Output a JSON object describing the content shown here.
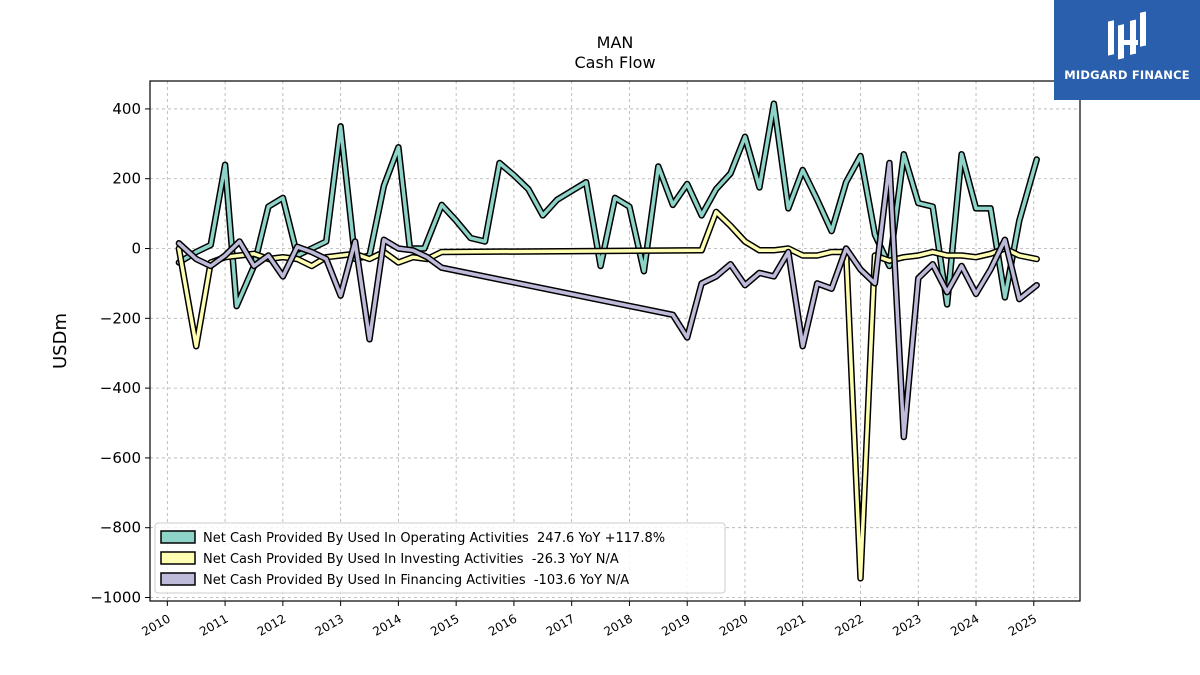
{
  "brand": {
    "name": "MIDGARD FINANCE",
    "background": "#2a5fad"
  },
  "chart_data": {
    "type": "line",
    "title": "MAN",
    "subtitle": "Cash Flow",
    "xlabel": "",
    "ylabel": "USDm",
    "xlim": [
      2009.7,
      2025.8
    ],
    "ylim": [
      -1010,
      480
    ],
    "x_ticks": [
      "2010",
      "2011",
      "2012",
      "2013",
      "2014",
      "2015",
      "2016",
      "2017",
      "2018",
      "2019",
      "2020",
      "2021",
      "2022",
      "2023",
      "2024",
      "2025"
    ],
    "y_ticks": [
      400,
      200,
      0,
      -200,
      -400,
      -600,
      -800,
      -1000
    ],
    "y_tick_labels": [
      "400",
      "200",
      "0",
      "−200",
      "−400",
      "−600",
      "−800",
      "−1000"
    ],
    "grid": true,
    "legend_position": "lower-left",
    "series": [
      {
        "name": "Net Cash Provided By Used In Operating Activities  247.6 YoY +117.8%",
        "color": "#8dd3c7",
        "points": [
          [
            2010.2,
            -40
          ],
          [
            2010.5,
            -10
          ],
          [
            2010.75,
            10
          ],
          [
            2011.0,
            240
          ],
          [
            2011.2,
            -165
          ],
          [
            2011.5,
            -50
          ],
          [
            2011.75,
            120
          ],
          [
            2012.0,
            145
          ],
          [
            2012.25,
            -20
          ],
          [
            2012.5,
            0
          ],
          [
            2012.75,
            20
          ],
          [
            2013.0,
            350
          ],
          [
            2013.25,
            -30
          ],
          [
            2013.5,
            -20
          ],
          [
            2013.75,
            180
          ],
          [
            2014.0,
            290
          ],
          [
            2014.2,
            0
          ],
          [
            2014.45,
            0
          ],
          [
            2014.75,
            125
          ],
          [
            2015.0,
            80
          ],
          [
            2015.25,
            30
          ],
          [
            2015.5,
            20
          ],
          [
            2015.75,
            245
          ],
          [
            2016.0,
            210
          ],
          [
            2016.25,
            170
          ],
          [
            2016.5,
            95
          ],
          [
            2016.75,
            140
          ],
          [
            2017.0,
            165
          ],
          [
            2017.25,
            190
          ],
          [
            2017.5,
            -50
          ],
          [
            2017.75,
            145
          ],
          [
            2018.0,
            120
          ],
          [
            2018.25,
            -65
          ],
          [
            2018.5,
            235
          ],
          [
            2018.75,
            125
          ],
          [
            2019.0,
            185
          ],
          [
            2019.25,
            95
          ],
          [
            2019.5,
            170
          ],
          [
            2019.75,
            215
          ],
          [
            2020.0,
            320
          ],
          [
            2020.25,
            175
          ],
          [
            2020.5,
            415
          ],
          [
            2020.75,
            115
          ],
          [
            2021.0,
            225
          ],
          [
            2021.25,
            140
          ],
          [
            2021.5,
            50
          ],
          [
            2021.75,
            190
          ],
          [
            2022.0,
            265
          ],
          [
            2022.25,
            40
          ],
          [
            2022.5,
            -50
          ],
          [
            2022.75,
            270
          ],
          [
            2023.0,
            130
          ],
          [
            2023.25,
            120
          ],
          [
            2023.5,
            -160
          ],
          [
            2023.75,
            270
          ],
          [
            2024.0,
            115
          ],
          [
            2024.25,
            115
          ],
          [
            2024.5,
            -140
          ],
          [
            2024.75,
            80
          ],
          [
            2025.05,
            255
          ]
        ]
      },
      {
        "name": "Net Cash Provided By Used In Investing Activities  -26.3 YoY N/A",
        "color": "#ffffb3",
        "points": [
          [
            2010.2,
            0
          ],
          [
            2010.5,
            -280
          ],
          [
            2010.75,
            -40
          ],
          [
            2011.0,
            -25
          ],
          [
            2011.25,
            -20
          ],
          [
            2011.5,
            -15
          ],
          [
            2011.75,
            -30
          ],
          [
            2012.0,
            -25
          ],
          [
            2012.25,
            -30
          ],
          [
            2012.5,
            -50
          ],
          [
            2012.75,
            -25
          ],
          [
            2013.0,
            -20
          ],
          [
            2013.25,
            -15
          ],
          [
            2013.5,
            -30
          ],
          [
            2013.75,
            -10
          ],
          [
            2014.0,
            -40
          ],
          [
            2014.25,
            -25
          ],
          [
            2014.5,
            -30
          ],
          [
            2014.75,
            -10
          ],
          [
            2019.25,
            -5
          ],
          [
            2019.5,
            105
          ],
          [
            2019.75,
            65
          ],
          [
            2020.0,
            20
          ],
          [
            2020.25,
            -5
          ],
          [
            2020.5,
            -5
          ],
          [
            2020.75,
            0
          ],
          [
            2021.0,
            -20
          ],
          [
            2021.25,
            -20
          ],
          [
            2021.5,
            -10
          ],
          [
            2021.75,
            -10
          ],
          [
            2022.0,
            -945
          ],
          [
            2022.25,
            -20
          ],
          [
            2022.5,
            -35
          ],
          [
            2022.75,
            -25
          ],
          [
            2023.0,
            -20
          ],
          [
            2023.25,
            -10
          ],
          [
            2023.5,
            -20
          ],
          [
            2023.75,
            -20
          ],
          [
            2024.0,
            -25
          ],
          [
            2024.25,
            -15
          ],
          [
            2024.5,
            0
          ],
          [
            2024.75,
            -20
          ],
          [
            2025.05,
            -30
          ]
        ]
      },
      {
        "name": "Net Cash Provided By Used In Financing Activities  -103.6 YoY N/A",
        "color": "#bebada",
        "points": [
          [
            2010.2,
            15
          ],
          [
            2010.5,
            -30
          ],
          [
            2010.75,
            -50
          ],
          [
            2011.0,
            -20
          ],
          [
            2011.25,
            20
          ],
          [
            2011.5,
            -50
          ],
          [
            2011.75,
            -20
          ],
          [
            2012.0,
            -80
          ],
          [
            2012.25,
            5
          ],
          [
            2012.5,
            -10
          ],
          [
            2012.75,
            -30
          ],
          [
            2013.0,
            -135
          ],
          [
            2013.25,
            20
          ],
          [
            2013.5,
            -260
          ],
          [
            2013.75,
            25
          ],
          [
            2014.0,
            0
          ],
          [
            2014.25,
            -5
          ],
          [
            2014.5,
            -25
          ],
          [
            2014.75,
            -55
          ],
          [
            2018.75,
            -190
          ],
          [
            2019.0,
            -255
          ],
          [
            2019.25,
            -100
          ],
          [
            2019.5,
            -80
          ],
          [
            2019.75,
            -45
          ],
          [
            2020.0,
            -105
          ],
          [
            2020.25,
            -70
          ],
          [
            2020.5,
            -80
          ],
          [
            2020.75,
            -10
          ],
          [
            2021.0,
            -280
          ],
          [
            2021.25,
            -100
          ],
          [
            2021.5,
            -115
          ],
          [
            2021.75,
            0
          ],
          [
            2022.0,
            -60
          ],
          [
            2022.25,
            -100
          ],
          [
            2022.5,
            245
          ],
          [
            2022.75,
            -540
          ],
          [
            2023.0,
            -85
          ],
          [
            2023.25,
            -45
          ],
          [
            2023.5,
            -125
          ],
          [
            2023.75,
            -50
          ],
          [
            2024.0,
            -130
          ],
          [
            2024.25,
            -60
          ],
          [
            2024.5,
            25
          ],
          [
            2024.75,
            -145
          ],
          [
            2025.05,
            -105
          ]
        ]
      }
    ]
  }
}
